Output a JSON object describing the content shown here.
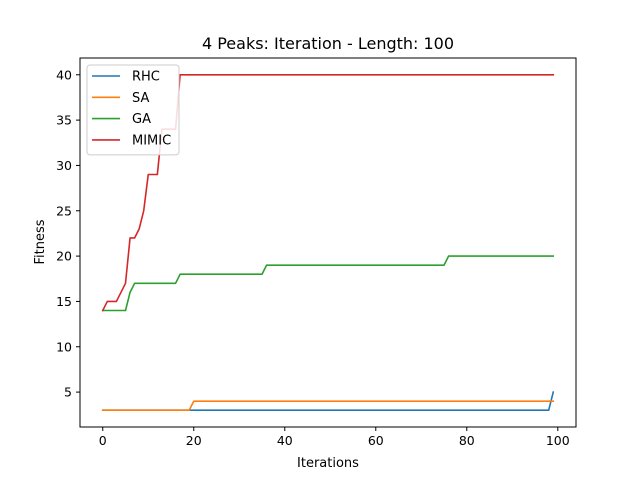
{
  "chart_data": {
    "type": "line",
    "title": "4 Peaks: Iteration - Length: 100",
    "xlabel": "Iterations",
    "ylabel": "Fitness",
    "xlim": [
      -5,
      104
    ],
    "ylim": [
      1.15,
      41.85
    ],
    "xticks": [
      0,
      20,
      40,
      60,
      80,
      100
    ],
    "yticks": [
      5,
      10,
      15,
      20,
      25,
      30,
      35,
      40
    ],
    "grid": false,
    "legend_position": "top-left",
    "series": [
      {
        "name": "RHC",
        "color": "#1f77b4",
        "points": [
          [
            0,
            3
          ],
          [
            98,
            3
          ],
          [
            99,
            5
          ]
        ]
      },
      {
        "name": "SA",
        "color": "#ff7f0e",
        "points": [
          [
            0,
            3
          ],
          [
            19,
            3
          ],
          [
            20,
            4
          ],
          [
            99,
            4
          ]
        ]
      },
      {
        "name": "GA",
        "color": "#2ca02c",
        "points": [
          [
            0,
            14
          ],
          [
            5,
            14
          ],
          [
            6,
            16
          ],
          [
            7,
            17
          ],
          [
            16,
            17
          ],
          [
            17,
            18
          ],
          [
            35,
            18
          ],
          [
            36,
            19
          ],
          [
            75,
            19
          ],
          [
            76,
            20
          ],
          [
            99,
            20
          ]
        ]
      },
      {
        "name": "MIMIC",
        "color": "#d62728",
        "points": [
          [
            0,
            14
          ],
          [
            1,
            15
          ],
          [
            3,
            15
          ],
          [
            5,
            17
          ],
          [
            6,
            22
          ],
          [
            7,
            22
          ],
          [
            8,
            23
          ],
          [
            9,
            25
          ],
          [
            10,
            29
          ],
          [
            12,
            29
          ],
          [
            13,
            34
          ],
          [
            16,
            34
          ],
          [
            17,
            40
          ],
          [
            99,
            40
          ]
        ]
      }
    ]
  }
}
